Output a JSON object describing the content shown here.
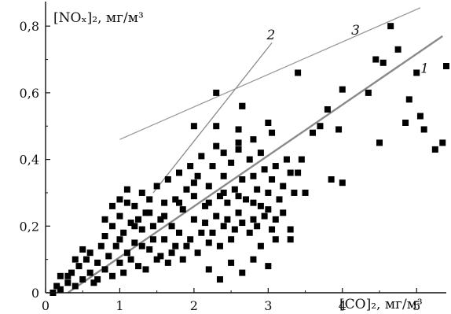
{
  "chart_data": {
    "type": "scatter",
    "xlabel": "[CO]₂, мг/м³",
    "ylabel": "[NOₓ]₂, мг/м³",
    "xlim": [
      0,
      5.4
    ],
    "ylim": [
      0,
      0.85
    ],
    "x_ticks": [
      0,
      1,
      2,
      3,
      4,
      5
    ],
    "y_ticks": [
      0,
      0.2,
      0.4,
      0.6,
      0.8
    ],
    "x_tick_labels": [
      "0",
      "1",
      "2",
      "3",
      "4",
      "5"
    ],
    "y_tick_labels": [
      "0",
      "0,2",
      "0,4",
      "0,6",
      "0,8"
    ],
    "grid": false,
    "marker": "square",
    "marker_color": "#000000",
    "lines": [
      {
        "label": "1",
        "color": "#8a8a8a",
        "x": [
          0.3,
          5.35
        ],
        "y": [
          0.0,
          0.77
        ]
      },
      {
        "label": "2",
        "color": "#8a8a8a",
        "x": [
          1.45,
          3.05
        ],
        "y": [
          0.3,
          0.75
        ]
      },
      {
        "label": "3",
        "color": "#9a9a9a",
        "x": [
          1.0,
          5.05
        ],
        "y": [
          0.46,
          0.855
        ]
      }
    ],
    "points": [
      [
        0.1,
        0.0
      ],
      [
        0.15,
        0.02
      ],
      [
        0.2,
        0.05
      ],
      [
        0.2,
        0.01
      ],
      [
        0.3,
        0.03
      ],
      [
        0.35,
        0.06
      ],
      [
        0.4,
        0.02
      ],
      [
        0.45,
        0.08
      ],
      [
        0.5,
        0.04
      ],
      [
        0.55,
        0.1
      ],
      [
        0.6,
        0.06
      ],
      [
        0.6,
        0.12
      ],
      [
        0.65,
        0.03
      ],
      [
        0.7,
        0.09
      ],
      [
        0.75,
        0.14
      ],
      [
        0.8,
        0.07
      ],
      [
        0.8,
        0.17
      ],
      [
        0.85,
        0.11
      ],
      [
        0.9,
        0.05
      ],
      [
        0.9,
        0.2
      ],
      [
        0.95,
        0.14
      ],
      [
        1.0,
        0.09
      ],
      [
        1.0,
        0.23
      ],
      [
        1.0,
        0.28
      ],
      [
        1.05,
        0.18
      ],
      [
        1.1,
        0.12
      ],
      [
        1.1,
        0.31
      ],
      [
        1.15,
        0.21
      ],
      [
        1.2,
        0.15
      ],
      [
        1.2,
        0.26
      ],
      [
        1.25,
        0.08
      ],
      [
        1.3,
        0.19
      ],
      [
        1.3,
        0.3
      ],
      [
        1.35,
        0.24
      ],
      [
        1.4,
        0.13
      ],
      [
        1.4,
        0.28
      ],
      [
        1.45,
        0.2
      ],
      [
        1.5,
        0.1
      ],
      [
        1.5,
        0.32
      ],
      [
        1.55,
        0.22
      ],
      [
        1.6,
        0.16
      ],
      [
        1.6,
        0.27
      ],
      [
        1.65,
        0.34
      ],
      [
        1.7,
        0.2
      ],
      [
        1.7,
        0.12
      ],
      [
        1.75,
        0.28
      ],
      [
        1.8,
        0.36
      ],
      [
        1.8,
        0.18
      ],
      [
        1.85,
        0.25
      ],
      [
        1.9,
        0.31
      ],
      [
        1.9,
        0.14
      ],
      [
        1.95,
        0.38
      ],
      [
        2.0,
        0.22
      ],
      [
        2.0,
        0.29
      ],
      [
        2.05,
        0.35
      ],
      [
        2.1,
        0.18
      ],
      [
        2.1,
        0.41
      ],
      [
        2.15,
        0.26
      ],
      [
        2.2,
        0.32
      ],
      [
        2.2,
        0.15
      ],
      [
        2.25,
        0.38
      ],
      [
        2.3,
        0.23
      ],
      [
        2.3,
        0.44
      ],
      [
        2.35,
        0.29
      ],
      [
        2.4,
        0.2
      ],
      [
        2.4,
        0.35
      ],
      [
        2.45,
        0.27
      ],
      [
        2.5,
        0.39
      ],
      [
        2.5,
        0.16
      ],
      [
        2.55,
        0.31
      ],
      [
        2.6,
        0.24
      ],
      [
        2.6,
        0.45
      ],
      [
        2.65,
        0.34
      ],
      [
        2.7,
        0.28
      ],
      [
        2.75,
        0.4
      ],
      [
        2.8,
        0.22
      ],
      [
        2.8,
        0.35
      ],
      [
        2.85,
        0.31
      ],
      [
        2.9,
        0.26
      ],
      [
        2.9,
        0.42
      ],
      [
        2.95,
        0.37
      ],
      [
        3.0,
        0.3
      ],
      [
        3.05,
        0.34
      ],
      [
        3.1,
        0.38
      ],
      [
        3.15,
        0.28
      ],
      [
        3.2,
        0.32
      ],
      [
        3.25,
        0.4
      ],
      [
        3.3,
        0.36
      ],
      [
        3.35,
        0.3
      ],
      [
        0.3,
        0.05
      ],
      [
        0.4,
        0.1
      ],
      [
        0.5,
        0.13
      ],
      [
        0.7,
        0.04
      ],
      [
        0.8,
        0.22
      ],
      [
        0.9,
        0.26
      ],
      [
        1.05,
        0.06
      ],
      [
        1.15,
        0.1
      ],
      [
        1.25,
        0.22
      ],
      [
        1.35,
        0.07
      ],
      [
        1.45,
        0.16
      ],
      [
        1.55,
        0.11
      ],
      [
        1.65,
        0.09
      ],
      [
        1.75,
        0.14
      ],
      [
        1.85,
        0.1
      ],
      [
        1.95,
        0.16
      ],
      [
        2.05,
        0.12
      ],
      [
        2.15,
        0.21
      ],
      [
        2.25,
        0.18
      ],
      [
        2.35,
        0.14
      ],
      [
        2.45,
        0.22
      ],
      [
        2.55,
        0.19
      ],
      [
        2.65,
        0.21
      ],
      [
        2.75,
        0.18
      ],
      [
        2.85,
        0.2
      ],
      [
        2.95,
        0.23
      ],
      [
        1.2,
        0.2
      ],
      [
        1.4,
        0.24
      ],
      [
        1.6,
        0.23
      ],
      [
        1.8,
        0.27
      ],
      [
        2.0,
        0.33
      ],
      [
        2.2,
        0.27
      ],
      [
        2.4,
        0.3
      ],
      [
        2.6,
        0.29
      ],
      [
        2.8,
        0.27
      ],
      [
        3.0,
        0.25
      ],
      [
        3.1,
        0.22
      ],
      [
        1.0,
        0.16
      ],
      [
        1.1,
        0.27
      ],
      [
        1.3,
        0.14
      ],
      [
        2.2,
        0.07
      ],
      [
        2.35,
        0.04
      ],
      [
        2.5,
        0.09
      ],
      [
        2.65,
        0.06
      ],
      [
        2.8,
        0.1
      ],
      [
        3.0,
        0.08
      ],
      [
        3.05,
        0.19
      ],
      [
        3.1,
        0.16
      ],
      [
        2.9,
        0.14
      ],
      [
        2.3,
        0.6
      ],
      [
        2.0,
        0.5
      ],
      [
        2.3,
        0.5
      ],
      [
        2.6,
        0.49
      ],
      [
        2.65,
        0.56
      ],
      [
        2.65,
        0.56
      ],
      [
        3.0,
        0.51
      ],
      [
        2.8,
        0.46
      ],
      [
        3.05,
        0.48
      ],
      [
        2.6,
        0.43
      ],
      [
        2.4,
        0.42
      ],
      [
        3.4,
        0.66
      ],
      [
        3.8,
        0.55
      ],
      [
        4.0,
        0.61
      ],
      [
        3.95,
        0.49
      ],
      [
        3.6,
        0.48
      ],
      [
        3.7,
        0.5
      ],
      [
        3.85,
        0.34
      ],
      [
        4.0,
        0.33
      ],
      [
        4.35,
        0.6
      ],
      [
        4.45,
        0.7
      ],
      [
        4.5,
        0.45
      ],
      [
        4.55,
        0.69
      ],
      [
        4.65,
        0.8
      ],
      [
        4.75,
        0.73
      ],
      [
        4.85,
        0.51
      ],
      [
        4.9,
        0.58
      ],
      [
        5.0,
        0.66
      ],
      [
        5.05,
        0.53
      ],
      [
        5.1,
        0.49
      ],
      [
        5.25,
        0.43
      ],
      [
        5.35,
        0.45
      ],
      [
        5.4,
        0.68
      ],
      [
        5.55,
        0.72
      ],
      [
        5.6,
        0.78
      ],
      [
        5.7,
        0.84
      ],
      [
        5.8,
        0.81
      ],
      [
        3.4,
        0.36
      ],
      [
        3.5,
        0.3
      ],
      [
        3.3,
        0.19
      ],
      [
        3.3,
        0.16
      ],
      [
        3.2,
        0.24
      ],
      [
        3.45,
        0.4
      ]
    ]
  }
}
